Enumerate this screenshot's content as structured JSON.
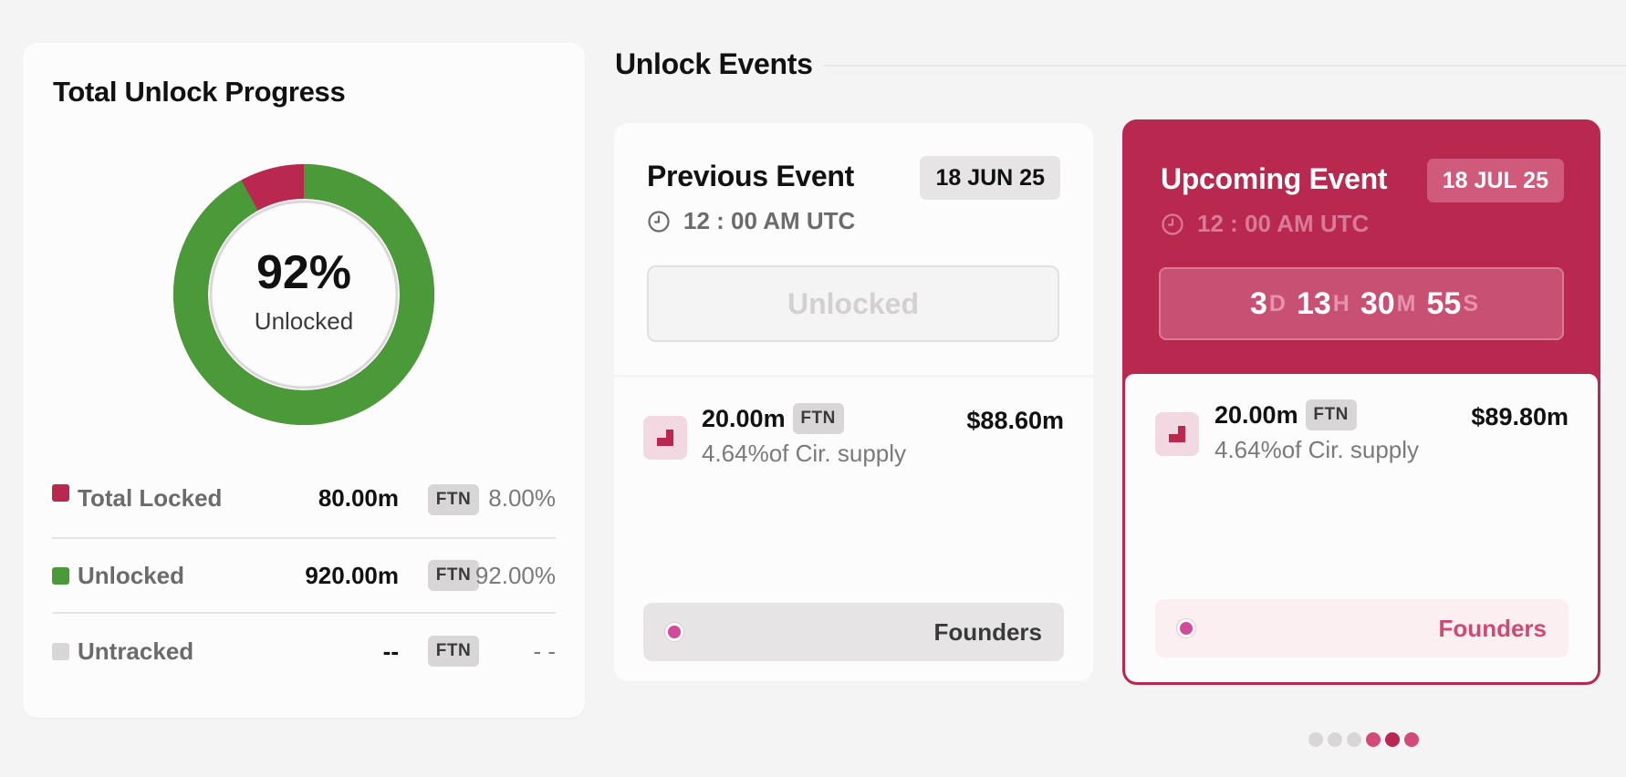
{
  "progress": {
    "title": "Total Unlock Progress",
    "percent_label": "92%",
    "center_label": "Unlocked",
    "unlocked_fraction": 0.92,
    "colors": {
      "locked": "#b9294f",
      "unlocked": "#4a9a3a",
      "untracked": "#d9d6d7",
      "inner_ring": "#dcd8d9"
    },
    "legend": [
      {
        "label": "Total Locked",
        "amount": "80.00m",
        "ticker": "FTN",
        "percent": "8.00%",
        "color": "#b9294f"
      },
      {
        "label": "Unlocked",
        "amount": "920.00m",
        "ticker": "FTN",
        "percent": "92.00%",
        "color": "#4a9a3a"
      },
      {
        "label": "Untracked",
        "amount": "--",
        "ticker": "FTN",
        "percent": "- -",
        "color": "#d9d6d7"
      }
    ]
  },
  "events_section": {
    "title": "Unlock Events"
  },
  "previous_event": {
    "title": "Previous Event",
    "date": "18 JUN 25",
    "time": "12 : 00 AM UTC",
    "status_label": "Unlocked",
    "allocation": {
      "amount": "20.00m",
      "ticker": "FTN",
      "usd_value": "$88.60m",
      "supply": "4.64%of Cir. supply",
      "group": "Founders"
    }
  },
  "upcoming_event": {
    "title": "Upcoming Event",
    "date": "18 JUL 25",
    "time": "12 : 00 AM UTC",
    "countdown": {
      "days": "3",
      "days_unit": "D",
      "hours": "13",
      "hours_unit": "H",
      "minutes": "30",
      "minutes_unit": "M",
      "seconds": "55",
      "seconds_unit": "S"
    },
    "allocation": {
      "amount": "20.00m",
      "ticker": "FTN",
      "usd_value": "$89.80m",
      "supply": "4.64%of Cir. supply",
      "group": "Founders"
    }
  },
  "pager": {
    "active_index": 4,
    "dot_colors": [
      "#d9d6d7",
      "#d9d6d7",
      "#d9d6d7",
      "#d24a78",
      "#b9294f",
      "#d24a78"
    ]
  },
  "icons": {
    "clock": "clock-icon",
    "allocation": "allocation-block-icon",
    "group_dot": "group-dot-icon"
  }
}
